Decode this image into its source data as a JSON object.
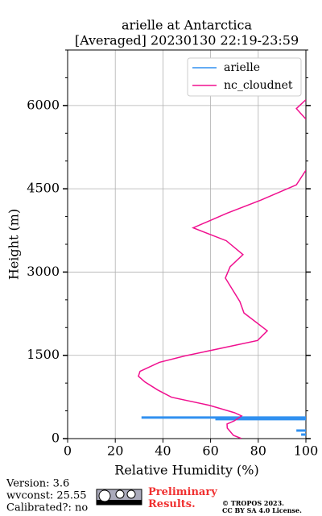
{
  "chart_data": {
    "type": "line",
    "title": "arielle at Antarctica",
    "subtitle": "[Averaged] 20230130 22:19-23:59",
    "x_label": "Relative Humidity (%)",
    "y_label": "Height (m)",
    "xlim": [
      0,
      100
    ],
    "xticks": [
      0,
      20,
      40,
      60,
      80,
      100
    ],
    "ylim": [
      0,
      7000
    ],
    "yticks": [
      0,
      1500,
      3000,
      4500,
      6000
    ],
    "yminorticks": [
      500,
      1000,
      2000,
      2500,
      3500,
      4000,
      5000,
      5500,
      6500,
      7000
    ],
    "grid": true,
    "legend": "upper right",
    "series": [
      {
        "name": "arielle",
        "color": "#3090f0",
        "x": [
          31,
          100,
          null,
          62,
          100,
          null,
          96,
          100,
          null,
          98,
          100
        ],
        "values": [
          380,
          380,
          null,
          350,
          350,
          null,
          146,
          146,
          null,
          73,
          73
        ]
      },
      {
        "name": "nc_cloudnet",
        "color": "#f0108f",
        "x": [
          73,
          69.6,
          67,
          66.9,
          70,
          73,
          70,
          59.5,
          43.6,
          37.8,
          32.4,
          29.7,
          30.4,
          38.5,
          49.3,
          79.7,
          83.8,
          74,
          72.3,
          66.2,
          68.2,
          73.6,
          66.6,
          52.7,
          66.9,
          81,
          96,
          100,
          null,
          100,
          96,
          100
        ],
        "values": [
          0,
          58,
          190,
          263,
          321,
          409,
          467,
          599,
          745,
          876,
          1022,
          1124,
          1212,
          1373,
          1490,
          1767,
          1942,
          2264,
          2468,
          2892,
          3096,
          3315,
          3564,
          3797,
          4060,
          4294,
          4571,
          4834,
          null,
          6105,
          5944,
          5754
        ]
      }
    ]
  },
  "footer": {
    "version": "Version: 3.6",
    "wvconst": "wvconst:  25.55",
    "calibrated": "Calibrated?: no",
    "notice": "Preliminary Results.",
    "copyright": "© TROPOS 2023.",
    "license": "CC BY SA 4.0 License."
  }
}
